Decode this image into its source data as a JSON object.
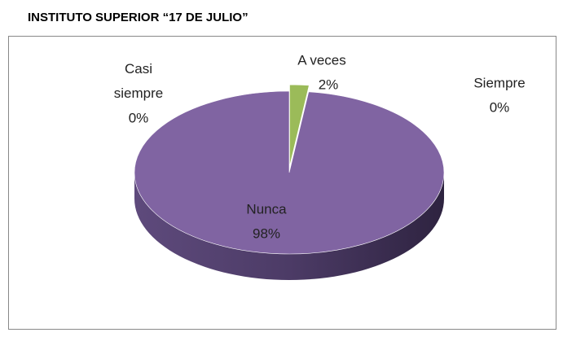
{
  "chart_data": {
    "type": "pie",
    "title": "INSTITUTO SUPERIOR “17 DE JULIO”",
    "categories": [
      "Siempre",
      "Casi siempre",
      "A veces",
      "Nunca"
    ],
    "values": [
      0,
      0,
      2,
      98
    ],
    "value_labels": [
      "0%",
      "0%",
      "2%",
      "98%"
    ],
    "colors": [
      "#4f81bd",
      "#c0504d",
      "#9bbb59",
      "#8064a2"
    ]
  }
}
